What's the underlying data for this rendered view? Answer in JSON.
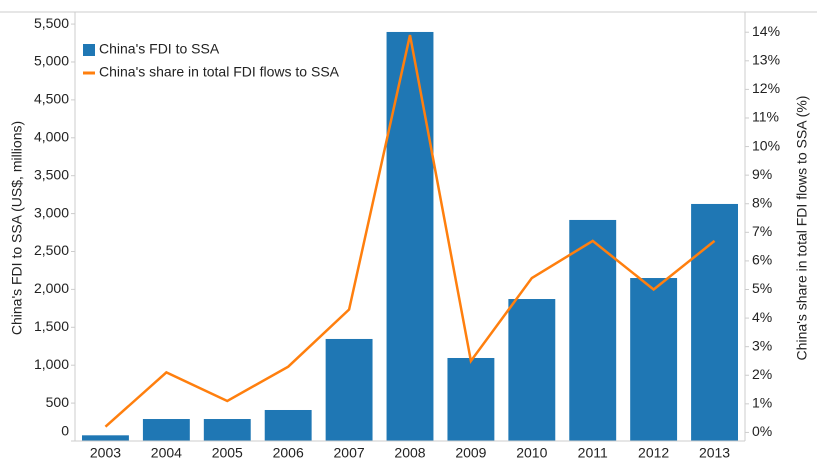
{
  "chart_data": {
    "type": "bar_line",
    "y_axis_label": "China's FDI to SSA (US$, millions)",
    "y2_axis_label": "China's share in total FDI flows to SSA (%)",
    "categories": [
      "2003",
      "2004",
      "2005",
      "2006",
      "2007",
      "2008",
      "2009",
      "2010",
      "2011",
      "2012",
      "2013"
    ],
    "series": [
      {
        "name": "China's FDI to SSA",
        "type": "bar",
        "color": "#1f77b4",
        "values": [
          75,
          290,
          290,
          409,
          1346,
          5396,
          1095,
          1873,
          2916,
          2150,
          3127
        ]
      },
      {
        "name": "China's share in total FDI flows to SSA",
        "type": "line",
        "axis": "y2",
        "color": "#ff7f0e",
        "values": [
          0.2,
          2.1,
          1.1,
          2.3,
          4.3,
          13.9,
          2.5,
          5.4,
          6.7,
          5.0,
          6.7
        ]
      }
    ],
    "ylim": [
      0,
      5600
    ],
    "yticks": [
      0,
      500,
      {
        "value": 1000,
        "label": "1,000"
      },
      {
        "value": 1500,
        "label": "1,500"
      },
      {
        "value": 2000,
        "label": "2,000"
      },
      {
        "value": 2500,
        "label": "2,500"
      },
      {
        "value": 3000,
        "label": "3,000"
      },
      {
        "value": 3500,
        "label": "3,500"
      },
      {
        "value": 4000,
        "label": "4,000"
      },
      {
        "value": 4500,
        "label": "4,500"
      },
      {
        "value": 5000,
        "label": "5,000"
      },
      {
        "value": 5500,
        "label": "5,500"
      }
    ],
    "y2lim": [
      -0.3,
      14.55
    ],
    "y2ticks": [
      {
        "value": 0,
        "label": "0%"
      },
      {
        "value": 1,
        "label": "1%"
      },
      {
        "value": 2,
        "label": "2%"
      },
      {
        "value": 3,
        "label": "3%"
      },
      {
        "value": 4,
        "label": "4%"
      },
      {
        "value": 5,
        "label": "5%"
      },
      {
        "value": 6,
        "label": "6%"
      },
      {
        "value": 7,
        "label": "7%"
      },
      {
        "value": 8,
        "label": "8%"
      },
      {
        "value": 9,
        "label": "9%"
      },
      {
        "value": 10,
        "label": "10%"
      },
      {
        "value": 11,
        "label": "11%"
      },
      {
        "value": 12,
        "label": "12%"
      },
      {
        "value": 13,
        "label": "13%"
      },
      {
        "value": 14,
        "label": "14%"
      }
    ],
    "legend": "top-left"
  }
}
